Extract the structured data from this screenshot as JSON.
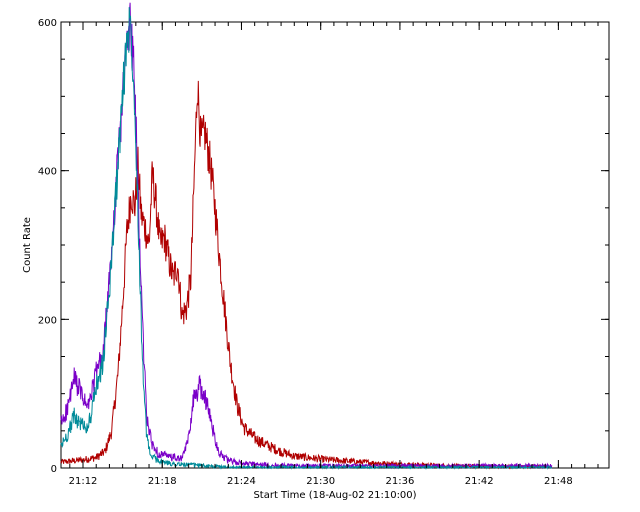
{
  "chart_data": {
    "type": "line",
    "title": "",
    "xlabel": "Start Time (18-Aug-02 21:10:00)",
    "ylabel": "Count Rate",
    "x_unit": "time HH:MM",
    "xlim": [
      "21:10:20",
      "21:51:50"
    ],
    "ylim": [
      0,
      600
    ],
    "x_ticks": [
      "21:12",
      "21:18",
      "21:24",
      "21:30",
      "21:36",
      "21:42",
      "21:48"
    ],
    "y_ticks": [
      0,
      200,
      400,
      600
    ],
    "grid": false,
    "legend": "none",
    "series": [
      {
        "color": "#b00000",
        "points": [
          [
            "21:10:20",
            8
          ],
          [
            "21:11:00",
            9
          ],
          [
            "21:12:00",
            11
          ],
          [
            "21:13:00",
            14
          ],
          [
            "21:13:40",
            22
          ],
          [
            "21:14:10",
            50
          ],
          [
            "21:14:40",
            130
          ],
          [
            "21:15:00",
            220
          ],
          [
            "21:15:20",
            320
          ],
          [
            "21:15:40",
            370
          ],
          [
            "21:15:55",
            350
          ],
          [
            "21:16:10",
            405
          ],
          [
            "21:16:25",
            340
          ],
          [
            "21:16:45",
            320
          ],
          [
            "21:17:00",
            300
          ],
          [
            "21:17:15",
            395
          ],
          [
            "21:17:30",
            360
          ],
          [
            "21:17:50",
            300
          ],
          [
            "21:18:10",
            310
          ],
          [
            "21:18:30",
            280
          ],
          [
            "21:18:50",
            255
          ],
          [
            "21:19:10",
            275
          ],
          [
            "21:19:30",
            205
          ],
          [
            "21:19:50",
            215
          ],
          [
            "21:20:10",
            255
          ],
          [
            "21:20:30",
            430
          ],
          [
            "21:20:40",
            520
          ],
          [
            "21:20:55",
            440
          ],
          [
            "21:21:15",
            450
          ],
          [
            "21:21:40",
            405
          ],
          [
            "21:22:00",
            350
          ],
          [
            "21:22:20",
            285
          ],
          [
            "21:22:45",
            210
          ],
          [
            "21:23:10",
            140
          ],
          [
            "21:23:40",
            85
          ],
          [
            "21:24:10",
            55
          ],
          [
            "21:25:00",
            40
          ],
          [
            "21:26:00",
            30
          ],
          [
            "21:27:00",
            22
          ],
          [
            "21:28:00",
            16
          ],
          [
            "21:30:00",
            12
          ],
          [
            "21:33:00",
            8
          ],
          [
            "21:36:00",
            5
          ],
          [
            "21:40:00",
            3
          ],
          [
            "21:44:00",
            2
          ],
          [
            "21:47:30",
            2
          ]
        ]
      },
      {
        "color": "#7a00c8",
        "points": [
          [
            "21:10:20",
            60
          ],
          [
            "21:10:50",
            80
          ],
          [
            "21:11:20",
            120
          ],
          [
            "21:11:45",
            105
          ],
          [
            "21:12:20",
            80
          ],
          [
            "21:12:40",
            100
          ],
          [
            "21:13:00",
            130
          ],
          [
            "21:13:30",
            150
          ],
          [
            "21:14:00",
            250
          ],
          [
            "21:14:30",
            380
          ],
          [
            "21:14:55",
            480
          ],
          [
            "21:15:20",
            570
          ],
          [
            "21:15:35",
            600
          ],
          [
            "21:15:50",
            540
          ],
          [
            "21:16:05",
            420
          ],
          [
            "21:16:20",
            280
          ],
          [
            "21:16:35",
            160
          ],
          [
            "21:16:50",
            70
          ],
          [
            "21:17:10",
            35
          ],
          [
            "21:17:40",
            20
          ],
          [
            "21:18:30",
            15
          ],
          [
            "21:19:30",
            12
          ],
          [
            "21:20:00",
            40
          ],
          [
            "21:20:20",
            90
          ],
          [
            "21:20:50",
            110
          ],
          [
            "21:21:15",
            95
          ],
          [
            "21:21:40",
            65
          ],
          [
            "21:22:00",
            40
          ],
          [
            "21:22:20",
            20
          ],
          [
            "21:23:00",
            10
          ],
          [
            "21:24:00",
            6
          ],
          [
            "21:26:00",
            4
          ],
          [
            "21:30:00",
            3
          ],
          [
            "21:36:00",
            3
          ],
          [
            "21:42:00",
            3
          ],
          [
            "21:47:30",
            3
          ]
        ]
      },
      {
        "color": "#008b99",
        "points": [
          [
            "21:10:20",
            30
          ],
          [
            "21:10:50",
            45
          ],
          [
            "21:11:20",
            70
          ],
          [
            "21:11:45",
            60
          ],
          [
            "21:12:20",
            55
          ],
          [
            "21:12:40",
            75
          ],
          [
            "21:13:00",
            110
          ],
          [
            "21:13:30",
            140
          ],
          [
            "21:14:00",
            240
          ],
          [
            "21:14:30",
            370
          ],
          [
            "21:14:55",
            480
          ],
          [
            "21:15:20",
            580
          ],
          [
            "21:15:35",
            600
          ],
          [
            "21:15:50",
            530
          ],
          [
            "21:16:05",
            400
          ],
          [
            "21:16:20",
            240
          ],
          [
            "21:16:35",
            110
          ],
          [
            "21:16:50",
            40
          ],
          [
            "21:17:10",
            15
          ],
          [
            "21:18:00",
            8
          ],
          [
            "21:19:00",
            5
          ],
          [
            "21:20:30",
            4
          ],
          [
            "21:22:00",
            2
          ],
          [
            "21:24:00",
            1
          ],
          [
            "21:30:00",
            1
          ],
          [
            "21:40:00",
            1
          ],
          [
            "21:47:30",
            1
          ]
        ]
      }
    ]
  }
}
